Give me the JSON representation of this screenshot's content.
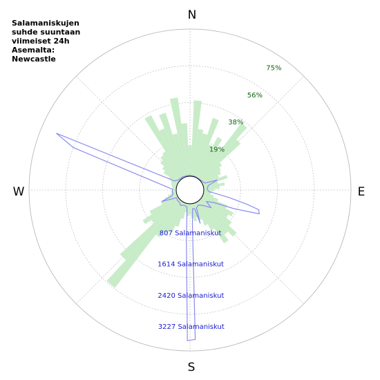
{
  "title": "Salamaniskujen\nsuhde suuntaan\nviimeiset 24h\nAsemalta:\nNewcastle",
  "compass": {
    "n": "N",
    "e": "E",
    "s": "S",
    "w": "W"
  },
  "colors": {
    "percent_fill": "#c8ecc8",
    "count_line": "#8a8af0",
    "percent_label": "#116611",
    "count_label": "#1a1ad0",
    "grid": "#b0b0b0"
  },
  "chart_data": {
    "type": "polar",
    "ring_labels_percent": [
      "19%",
      "38%",
      "56%",
      "75%"
    ],
    "ring_labels_count": [
      "807 Salamaniskut",
      "1614 Salamaniskut",
      "2420 Salamaniskut",
      "3227 Salamaniskut"
    ],
    "series": [
      {
        "name": "percent",
        "unit": "%",
        "max": 75,
        "bin_width_deg": 5,
        "bins": [
          {
            "bearing": 0,
            "value": 17.5
          },
          {
            "bearing": 5,
            "value": 43.0
          },
          {
            "bearing": 10,
            "value": 27.0
          },
          {
            "bearing": 15,
            "value": 25.0
          },
          {
            "bearing": 20,
            "value": 35.0
          },
          {
            "bearing": 25,
            "value": 20.0
          },
          {
            "bearing": 30,
            "value": 26.0
          },
          {
            "bearing": 35,
            "value": 20.0
          },
          {
            "bearing": 40,
            "value": 40.0
          },
          {
            "bearing": 45,
            "value": 31.0
          },
          {
            "bearing": 50,
            "value": 15.0
          },
          {
            "bearing": 55,
            "value": 13.0
          },
          {
            "bearing": 60,
            "value": 12.0
          },
          {
            "bearing": 65,
            "value": 10.0
          },
          {
            "bearing": 70,
            "value": 14.5
          },
          {
            "bearing": 75,
            "value": 8.5
          },
          {
            "bearing": 80,
            "value": 12.0
          },
          {
            "bearing": 85,
            "value": 9.0
          },
          {
            "bearing": 90,
            "value": 6.0
          },
          {
            "bearing": 95,
            "value": 5.0
          },
          {
            "bearing": 100,
            "value": 4.0
          },
          {
            "bearing": 105,
            "value": 6.0
          },
          {
            "bearing": 110,
            "value": 9.0
          },
          {
            "bearing": 115,
            "value": 15.0
          },
          {
            "bearing": 120,
            "value": 20.0
          },
          {
            "bearing": 125,
            "value": 18.0
          },
          {
            "bearing": 130,
            "value": 22.0
          },
          {
            "bearing": 135,
            "value": 28.0
          },
          {
            "bearing": 140,
            "value": 24.0
          },
          {
            "bearing": 145,
            "value": 28.0
          },
          {
            "bearing": 150,
            "value": 18.0
          },
          {
            "bearing": 155,
            "value": 14.0
          },
          {
            "bearing": 160,
            "value": 10.0
          },
          {
            "bearing": 165,
            "value": 8.0
          },
          {
            "bearing": 170,
            "value": 10.0
          },
          {
            "bearing": 175,
            "value": 8.0
          },
          {
            "bearing": 180,
            "value": 6.0
          },
          {
            "bearing": 185,
            "value": 7.0
          },
          {
            "bearing": 190,
            "value": 5.0
          },
          {
            "bearing": 195,
            "value": 9.0
          },
          {
            "bearing": 200,
            "value": 14.0
          },
          {
            "bearing": 205,
            "value": 18.0
          },
          {
            "bearing": 210,
            "value": 20.0
          },
          {
            "bearing": 215,
            "value": 24.0
          },
          {
            "bearing": 220,
            "value": 62.0
          },
          {
            "bearing": 225,
            "value": 46.0
          },
          {
            "bearing": 230,
            "value": 20.0
          },
          {
            "bearing": 235,
            "value": 24.0
          },
          {
            "bearing": 240,
            "value": 18.0
          },
          {
            "bearing": 245,
            "value": 10.0
          },
          {
            "bearing": 250,
            "value": 7.0
          },
          {
            "bearing": 255,
            "value": 5.0
          },
          {
            "bearing": 260,
            "value": 3.0
          },
          {
            "bearing": 265,
            "value": 2.5
          },
          {
            "bearing": 270,
            "value": 2.0
          },
          {
            "bearing": 275,
            "value": 2.0
          },
          {
            "bearing": 280,
            "value": 2.5
          },
          {
            "bearing": 285,
            "value": 3.0
          },
          {
            "bearing": 290,
            "value": 3.5
          },
          {
            "bearing": 295,
            "value": 4.0
          },
          {
            "bearing": 300,
            "value": 6.0
          },
          {
            "bearing": 305,
            "value": 10.0
          },
          {
            "bearing": 310,
            "value": 12.0
          },
          {
            "bearing": 315,
            "value": 15.0
          },
          {
            "bearing": 320,
            "value": 17.0
          },
          {
            "bearing": 325,
            "value": 18.0
          },
          {
            "bearing": 330,
            "value": 40.0
          },
          {
            "bearing": 335,
            "value": 30.0
          },
          {
            "bearing": 340,
            "value": 38.0
          },
          {
            "bearing": 345,
            "value": 25.0
          },
          {
            "bearing": 350,
            "value": 45.0
          },
          {
            "bearing": 355,
            "value": 30.0
          }
        ]
      },
      {
        "name": "count",
        "unit": "Salamaniskut",
        "max": 3227,
        "points": [
          {
            "bearing": 0,
            "value": 20
          },
          {
            "bearing": 20,
            "value": 15
          },
          {
            "bearing": 45,
            "value": 12
          },
          {
            "bearing": 65,
            "value": 60
          },
          {
            "bearing": 70,
            "value": 360
          },
          {
            "bearing": 76,
            "value": 120
          },
          {
            "bearing": 82,
            "value": 90
          },
          {
            "bearing": 88,
            "value": 80
          },
          {
            "bearing": 95,
            "value": 120
          },
          {
            "bearing": 98,
            "value": 300
          },
          {
            "bearing": 101,
            "value": 620
          },
          {
            "bearing": 104,
            "value": 1050
          },
          {
            "bearing": 106,
            "value": 1360
          },
          {
            "bearing": 109,
            "value": 1400
          },
          {
            "bearing": 113,
            "value": 800
          },
          {
            "bearing": 118,
            "value": 300
          },
          {
            "bearing": 125,
            "value": 150
          },
          {
            "bearing": 130,
            "value": 320
          },
          {
            "bearing": 140,
            "value": 150
          },
          {
            "bearing": 150,
            "value": 80
          },
          {
            "bearing": 160,
            "value": 120
          },
          {
            "bearing": 163,
            "value": 500
          },
          {
            "bearing": 166,
            "value": 130
          },
          {
            "bearing": 172,
            "value": 120
          },
          {
            "bearing": 176,
            "value": 500
          },
          {
            "bearing": 178,
            "value": 3200
          },
          {
            "bearing": 181,
            "value": 3227
          },
          {
            "bearing": 184,
            "value": 900
          },
          {
            "bearing": 190,
            "value": 80
          },
          {
            "bearing": 200,
            "value": 60
          },
          {
            "bearing": 208,
            "value": 80
          },
          {
            "bearing": 212,
            "value": 100
          },
          {
            "bearing": 218,
            "value": 60
          },
          {
            "bearing": 230,
            "value": 60
          },
          {
            "bearing": 240,
            "value": 40
          },
          {
            "bearing": 248,
            "value": 400
          },
          {
            "bearing": 252,
            "value": 120
          },
          {
            "bearing": 260,
            "value": 80
          },
          {
            "bearing": 265,
            "value": 100
          },
          {
            "bearing": 272,
            "value": 80
          },
          {
            "bearing": 277,
            "value": 200
          },
          {
            "bearing": 290,
            "value": 2600
          },
          {
            "bearing": 293,
            "value": 3100
          },
          {
            "bearing": 300,
            "value": 100
          },
          {
            "bearing": 310,
            "value": 40
          },
          {
            "bearing": 330,
            "value": 30
          },
          {
            "bearing": 350,
            "value": 20
          }
        ]
      }
    ],
    "grid": true
  }
}
